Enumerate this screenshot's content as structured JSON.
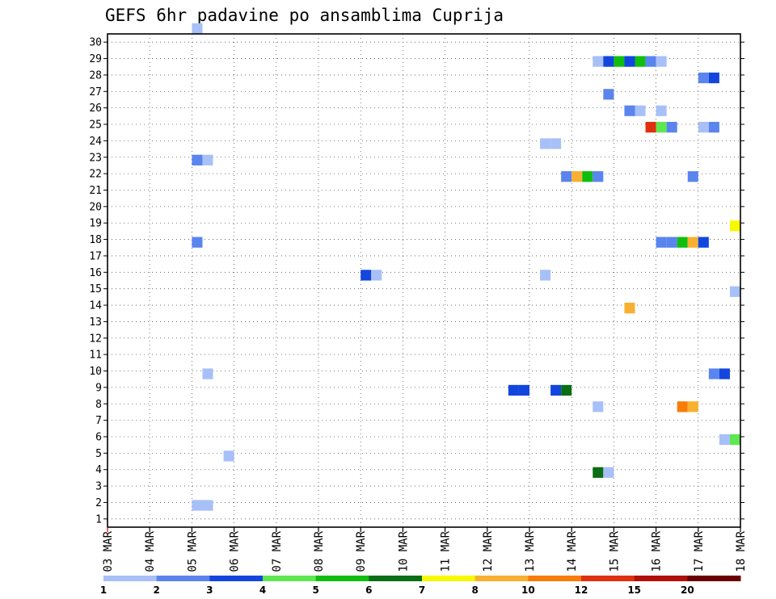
{
  "chart_data": {
    "type": "heatmap",
    "title": "GEFS 6hr padavine po ansamblima Cuprija",
    "ylabel": "",
    "xlabel": "",
    "y_ticks": [
      1,
      2,
      3,
      4,
      5,
      6,
      7,
      8,
      9,
      10,
      11,
      12,
      13,
      14,
      15,
      16,
      17,
      18,
      19,
      20,
      21,
      22,
      23,
      24,
      25,
      26,
      27,
      28,
      29,
      30
    ],
    "ylim": [
      0,
      30
    ],
    "x_tick_labels": [
      "03 MAR",
      "04 MAR",
      "05 MAR",
      "06 MAR",
      "07 MAR",
      "08 MAR",
      "09 MAR",
      "10 MAR",
      "11 MAR",
      "12 MAR",
      "13 MAR",
      "14 MAR",
      "15 MAR",
      "16 MAR",
      "17 MAR",
      "18 MAR"
    ],
    "x_unit": "6-hour steps from 03 MAR 00Z (4 steps per day)",
    "xlim": [
      0,
      60
    ],
    "grid": true,
    "legend": {
      "placement": "bottom",
      "labels": [
        "1",
        "2",
        "3",
        "4",
        "5",
        "6",
        "7",
        "8",
        "10",
        "12",
        "15",
        "20"
      ],
      "colors": [
        "#a8c0f8",
        "#5a85ee",
        "#1246de",
        "#5ee850",
        "#10be10",
        "#0a6e14",
        "#f8f800",
        "#f8b030",
        "#f87c08",
        "#e03010",
        "#b01008",
        "#6a0000"
      ]
    },
    "cells": [
      {
        "member": 30,
        "step": 8,
        "cls": 0
      },
      {
        "member": 28,
        "step": 46,
        "cls": 0
      },
      {
        "member": 28,
        "step": 47,
        "cls": 2
      },
      {
        "member": 28,
        "step": 48,
        "cls": 4
      },
      {
        "member": 28,
        "step": 49,
        "cls": 2
      },
      {
        "member": 28,
        "step": 50,
        "cls": 4
      },
      {
        "member": 28,
        "step": 51,
        "cls": 1
      },
      {
        "member": 28,
        "step": 52,
        "cls": 0
      },
      {
        "member": 27,
        "step": 56,
        "cls": 1
      },
      {
        "member": 27,
        "step": 57,
        "cls": 2
      },
      {
        "member": 26,
        "step": 47,
        "cls": 1
      },
      {
        "member": 25,
        "step": 49,
        "cls": 1
      },
      {
        "member": 25,
        "step": 50,
        "cls": 0
      },
      {
        "member": 25,
        "step": 52,
        "cls": 0
      },
      {
        "member": 24,
        "step": 51,
        "cls": 9
      },
      {
        "member": 24,
        "step": 52,
        "cls": 3
      },
      {
        "member": 24,
        "step": 53,
        "cls": 1
      },
      {
        "member": 24,
        "step": 56,
        "cls": 0
      },
      {
        "member": 24,
        "step": 57,
        "cls": 1
      },
      {
        "member": 23,
        "step": 41,
        "cls": 0
      },
      {
        "member": 23,
        "step": 42,
        "cls": 0
      },
      {
        "member": 22,
        "step": 8,
        "cls": 1
      },
      {
        "member": 22,
        "step": 9,
        "cls": 0
      },
      {
        "member": 21,
        "step": 43,
        "cls": 1
      },
      {
        "member": 21,
        "step": 44,
        "cls": 7
      },
      {
        "member": 21,
        "step": 45,
        "cls": 4
      },
      {
        "member": 21,
        "step": 46,
        "cls": 1
      },
      {
        "member": 21,
        "step": 55,
        "cls": 1
      },
      {
        "member": 18,
        "step": 59,
        "cls": 6
      },
      {
        "member": 17,
        "step": 8,
        "cls": 1
      },
      {
        "member": 17,
        "step": 52,
        "cls": 1
      },
      {
        "member": 17,
        "step": 53,
        "cls": 1
      },
      {
        "member": 17,
        "step": 54,
        "cls": 4
      },
      {
        "member": 17,
        "step": 55,
        "cls": 7
      },
      {
        "member": 17,
        "step": 56,
        "cls": 2
      },
      {
        "member": 15,
        "step": 24,
        "cls": 2
      },
      {
        "member": 15,
        "step": 25,
        "cls": 0
      },
      {
        "member": 15,
        "step": 41,
        "cls": 0
      },
      {
        "member": 14,
        "step": 59,
        "cls": 0
      },
      {
        "member": 13,
        "step": 49,
        "cls": 7
      },
      {
        "member": 9,
        "step": 9,
        "cls": 0
      },
      {
        "member": 9,
        "step": 57,
        "cls": 1
      },
      {
        "member": 9,
        "step": 58,
        "cls": 2
      },
      {
        "member": 8,
        "step": 38,
        "cls": 2
      },
      {
        "member": 8,
        "step": 39,
        "cls": 2
      },
      {
        "member": 8,
        "step": 42,
        "cls": 2
      },
      {
        "member": 8,
        "step": 43,
        "cls": 5
      },
      {
        "member": 7,
        "step": 46,
        "cls": 0
      },
      {
        "member": 7,
        "step": 54,
        "cls": 8
      },
      {
        "member": 7,
        "step": 55,
        "cls": 7
      },
      {
        "member": 5,
        "step": 58,
        "cls": 0
      },
      {
        "member": 5,
        "step": 59,
        "cls": 3
      },
      {
        "member": 4,
        "step": 11,
        "cls": 0
      },
      {
        "member": 3,
        "step": 46,
        "cls": 5
      },
      {
        "member": 3,
        "step": 47,
        "cls": 0
      },
      {
        "member": 1,
        "step": 8,
        "cls": 0
      },
      {
        "member": 1,
        "step": 9,
        "cls": 0
      }
    ]
  }
}
